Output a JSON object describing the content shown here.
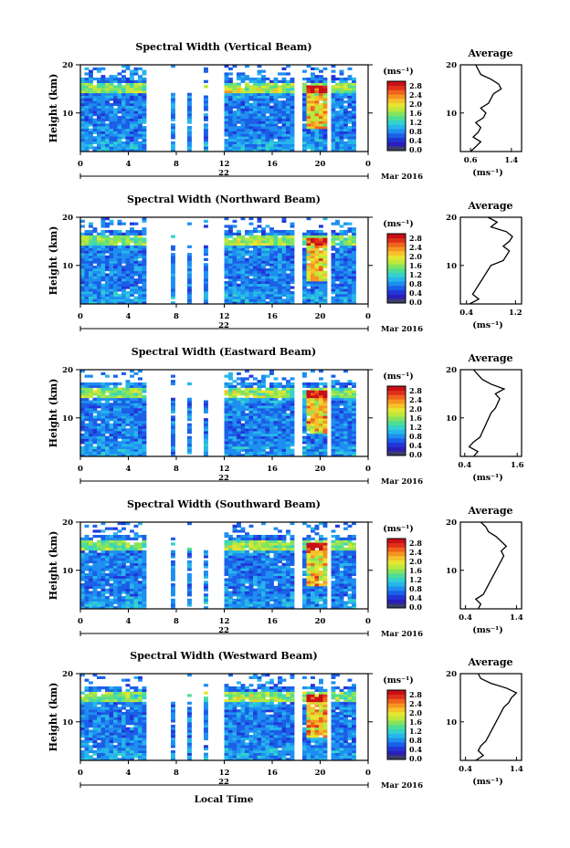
{
  "footer": {
    "xlabel": "Local Time"
  },
  "colorbar": {
    "unit": "(ms⁻¹)",
    "ticks": [
      "0.0",
      "0.4",
      "0.8",
      "1.2",
      "1.6",
      "2.0",
      "2.4",
      "2.8"
    ],
    "colors": [
      "#3a3f6b",
      "#2a1fb8",
      "#2236d8",
      "#1b5fe6",
      "#1e8ef0",
      "#27b6ea",
      "#33d2cc",
      "#4fdd96",
      "#86e35e",
      "#bde83c",
      "#e6e632",
      "#f5c22a",
      "#f59422",
      "#f0631c",
      "#e0301a",
      "#c81016"
    ]
  },
  "panels": [
    {
      "title": "Spectral Width (Vertical Beam)",
      "day": "22",
      "month": "Mar 2016",
      "avg_title": "Average",
      "avg_xticks": [
        "0.6",
        "1.4"
      ],
      "avg_xlim": [
        0.4,
        1.6
      ],
      "avg_unit": "(ms⁻¹)"
    },
    {
      "title": "Spectral Width (Northward Beam)",
      "day": "22",
      "month": "Mar 2016",
      "avg_title": "Average",
      "avg_xticks": [
        "0.4",
        "1.2"
      ],
      "avg_xlim": [
        0.3,
        1.3
      ],
      "avg_unit": "(ms⁻¹)"
    },
    {
      "title": "Spectral Width (Eastward Beam)",
      "day": "22",
      "month": "Mar 2016",
      "avg_title": "Average",
      "avg_xticks": [
        "0.4",
        "1.6"
      ],
      "avg_xlim": [
        0.3,
        1.7
      ],
      "avg_unit": "(ms⁻¹)"
    },
    {
      "title": "Spectral Width (Southward Beam)",
      "day": "22",
      "month": "Mar 2016",
      "avg_title": "Average",
      "avg_xticks": [
        "0.4",
        "1.4"
      ],
      "avg_xlim": [
        0.3,
        1.5
      ],
      "avg_unit": "(ms⁻¹)"
    },
    {
      "title": "Spectral Width (Westward Beam)",
      "day": "22",
      "month": "Mar 2016",
      "avg_title": "Average",
      "avg_xticks": [
        "0.4",
        "1.4"
      ],
      "avg_xlim": [
        0.3,
        1.5
      ],
      "avg_unit": "(ms⁻¹)"
    }
  ],
  "chart_data": {
    "type": "heatmap",
    "ylabel": "Height (km)",
    "xticks": [
      "0",
      "4",
      "8",
      "12",
      "16",
      "20",
      "0"
    ],
    "yticks": [
      "10",
      "20"
    ],
    "xlim": [
      0,
      24
    ],
    "ylim": [
      2,
      20
    ],
    "clim": [
      0.0,
      3.0
    ],
    "data_gaps_hours": [
      [
        5.5,
        13.8
      ]
    ],
    "avg_profile_heights_km": [
      2,
      3,
      4,
      5,
      6,
      7,
      8,
      9,
      10,
      11,
      12,
      13,
      14,
      15,
      16,
      17,
      18,
      19,
      20
    ],
    "avg_profiles": [
      {
        "name": "Vertical Beam",
        "values": [
          0.6,
          0.7,
          0.8,
          0.65,
          0.75,
          0.8,
          0.7,
          0.85,
          0.9,
          0.8,
          0.95,
          1.0,
          1.05,
          1.2,
          1.15,
          1.0,
          0.8,
          0.75,
          0.7
        ]
      },
      {
        "name": "Northward Beam",
        "values": [
          0.45,
          0.6,
          0.5,
          0.55,
          0.6,
          0.65,
          0.7,
          0.75,
          0.8,
          1.0,
          1.05,
          1.1,
          1.0,
          1.1,
          1.15,
          1.05,
          0.8,
          0.9,
          0.75
        ]
      },
      {
        "name": "Eastward Beam",
        "values": [
          0.6,
          0.7,
          0.5,
          0.6,
          0.75,
          0.8,
          0.85,
          0.9,
          0.95,
          1.0,
          1.1,
          1.15,
          1.2,
          1.1,
          1.3,
          1.0,
          0.8,
          0.7,
          0.6
        ]
      },
      {
        "name": "Southward Beam",
        "values": [
          0.65,
          0.7,
          0.6,
          0.75,
          0.8,
          0.85,
          0.9,
          0.95,
          1.0,
          1.05,
          1.1,
          1.15,
          1.1,
          1.2,
          1.1,
          1.0,
          0.85,
          0.8,
          0.7
        ]
      },
      {
        "name": "Westward Beam",
        "values": [
          0.6,
          0.75,
          0.65,
          0.7,
          0.8,
          0.85,
          0.9,
          0.95,
          1.0,
          1.05,
          1.1,
          1.15,
          1.25,
          1.3,
          1.4,
          1.2,
          0.9,
          0.7,
          0.65
        ]
      }
    ]
  }
}
